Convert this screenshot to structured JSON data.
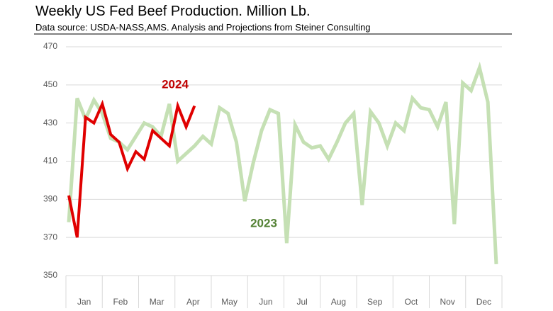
{
  "chart_data": {
    "type": "line",
    "title": "Weekly US Fed Beef Production.  Million Lb.",
    "subtitle": "Data source: USDA-NASS,AMS.   Analysis and Projections from Steiner Consulting",
    "x": [
      1,
      2,
      3,
      4,
      5,
      6,
      7,
      8,
      9,
      10,
      11,
      12,
      13,
      14,
      15,
      16,
      17,
      18,
      19,
      20,
      21,
      22,
      23,
      24,
      25,
      26,
      27,
      28,
      29,
      30,
      31,
      32,
      33,
      34,
      35,
      36,
      37,
      38,
      39,
      40,
      41,
      42,
      43,
      44,
      45,
      46,
      47,
      48,
      49,
      50,
      51,
      52
    ],
    "xlim": [
      0.66,
      52.68
    ],
    "month_labels": [
      "Jan",
      "Feb",
      "Mar",
      "Apr",
      "May",
      "Jun",
      "Jul",
      "Aug",
      "Sep",
      "Oct",
      "Nov",
      "Dec"
    ],
    "series": [
      {
        "name": "2023",
        "color": "#c5e0b4",
        "label_color": "#548235",
        "values": [
          378,
          443,
          432,
          442,
          435,
          422,
          420,
          416,
          423,
          430,
          428,
          423,
          440,
          410,
          414,
          418,
          423,
          419,
          438,
          435,
          420,
          389,
          409,
          426,
          437,
          435,
          367,
          429,
          420,
          417,
          418,
          411,
          420,
          430,
          435,
          387,
          436,
          430,
          418,
          430,
          426,
          443,
          438,
          437,
          428,
          441,
          377,
          451,
          447,
          459,
          441,
          356
        ]
      },
      {
        "name": "2024",
        "color": "#e00000",
        "label_color": "#c00000",
        "values": [
          392,
          370,
          433,
          430,
          440,
          424,
          420,
          406,
          415,
          411,
          426,
          422,
          418,
          439,
          428,
          439,
          null,
          null,
          null,
          null,
          null,
          null,
          null,
          null,
          null,
          null,
          null,
          null,
          null,
          null,
          null,
          null,
          null,
          null,
          null,
          null,
          null,
          null,
          null,
          null,
          null,
          null,
          null,
          null,
          null,
          null,
          null,
          null,
          null,
          null,
          null,
          null
        ]
      }
    ],
    "ylim": [
      350,
      470
    ],
    "yticks": [
      350,
      370,
      390,
      410,
      430,
      450,
      470
    ],
    "grid": true
  }
}
